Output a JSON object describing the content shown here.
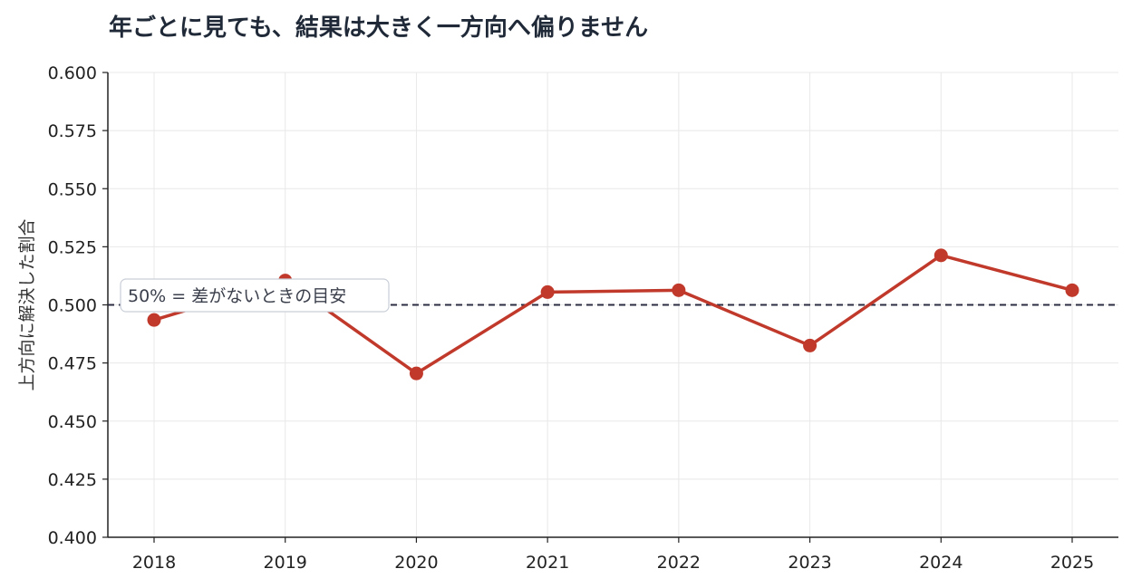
{
  "chart_data": {
    "type": "line",
    "title": "年ごとに見ても、結果は大きく一方向へ偏りません",
    "xlabel": "",
    "ylabel": "上方向に解決した割合",
    "categories": [
      "2018",
      "2019",
      "2020",
      "2021",
      "2022",
      "2023",
      "2024",
      "2025"
    ],
    "series": [
      {
        "values": [
          0.4935,
          0.5105,
          0.4705,
          0.5055,
          0.5063,
          0.4825,
          0.5213,
          0.5063
        ]
      }
    ],
    "ylim": [
      0.4,
      0.6
    ],
    "yticks": [
      "0.400",
      "0.425",
      "0.450",
      "0.475",
      "0.500",
      "0.525",
      "0.550",
      "0.575",
      "0.600"
    ],
    "grid": true,
    "reference_line": {
      "y": 0.5,
      "label": "50% = 差がないときの目安"
    },
    "colors": {
      "series": "#c0392b",
      "reference": "#2b2d42",
      "grid": "#e8e8e8",
      "axis": "#222222",
      "title": "#1f2937"
    }
  }
}
